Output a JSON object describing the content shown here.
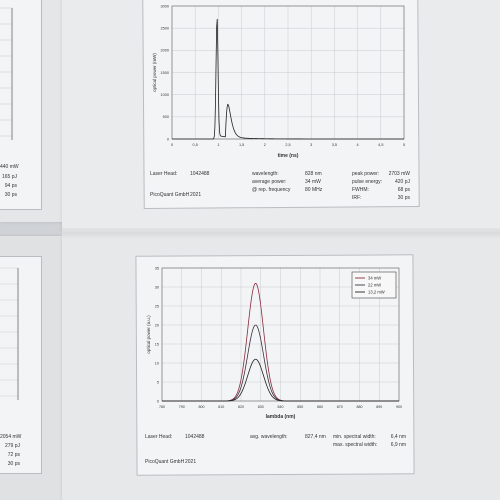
{
  "top_plot": {
    "ylabel": "optical power (mW)",
    "xlabel": "time (ns)",
    "x_ticks": [
      "0",
      "0,5",
      "1",
      "1,5",
      "2",
      "2,5",
      "3",
      "3,5",
      "4",
      "4,5",
      "5"
    ],
    "y_ticks": [
      "0",
      "500",
      "1000",
      "1500",
      "2000",
      "2500",
      "3000"
    ],
    "xlim": [
      0,
      5
    ],
    "ylim": [
      0,
      3000
    ],
    "peak": {
      "t": 0.97,
      "p": 2703
    },
    "secondary": {
      "t": 1.2,
      "p": 750
    }
  },
  "top_info": {
    "laser_head_label": "Laser Head:",
    "laser_head_value": "1042488",
    "company": "PicoQuant GmbH",
    "year": "2021",
    "wavelength_label": "wavelength:",
    "wavelength_value": "828 nm",
    "avg_power_label": "average power:",
    "avg_power_value": "34 mW",
    "rep_freq_label": "@ rep. frequency",
    "rep_freq_value": "80 MHz",
    "peak_power_label": "peak power:",
    "peak_power_value": "2703 mW",
    "pulse_energy_label": "pulse energy:",
    "pulse_energy_value": "420 pJ",
    "fwhm_label": "FWHM:",
    "fwhm_value": "68 ps",
    "irf_label": "IRF:",
    "irf_value": "30 ps"
  },
  "bottom_plot": {
    "ylabel": "optical power (a.u.)",
    "xlabel": "lambda (nm)",
    "x_ticks": [
      "780",
      "790",
      "800",
      "810",
      "820",
      "830",
      "840",
      "850",
      "860",
      "870",
      "880",
      "890",
      "900"
    ],
    "y_ticks": [
      "0",
      "5",
      "10",
      "15",
      "20",
      "25",
      "30",
      "35"
    ],
    "xlim": [
      780,
      900
    ],
    "ylim": [
      0,
      35
    ],
    "center": 827.4,
    "sigma": 4.0,
    "legend": [
      "34 mW",
      "22 mW",
      "13,2 mW"
    ],
    "amplitudes": [
      31,
      20,
      11
    ]
  },
  "bottom_info": {
    "laser_head_label": "Laser Head:",
    "laser_head_value": "1042488",
    "company": "PicoQuant GmbH",
    "year": "2021",
    "avg_wavelength_label": "avg. wavelength:",
    "avg_wavelength_value": "827,4 nm",
    "min_width_label": "min. spectral width:",
    "min_width_value": "6,4 nm",
    "max_width_label": "max. spectral width:",
    "max_width_value": "6,9 nm"
  },
  "left_top_values": [
    "440 mW",
    "165 pJ",
    "94 ps",
    "30 ps"
  ],
  "left_bottom_values": [
    "2054 mW",
    "279 pJ",
    "72 ps",
    "30 ps"
  ],
  "colors": {
    "curve_top": "#222222",
    "series": [
      "#8b2a3a",
      "#3a3040",
      "#222222"
    ],
    "grid": "#c9cbd0"
  }
}
